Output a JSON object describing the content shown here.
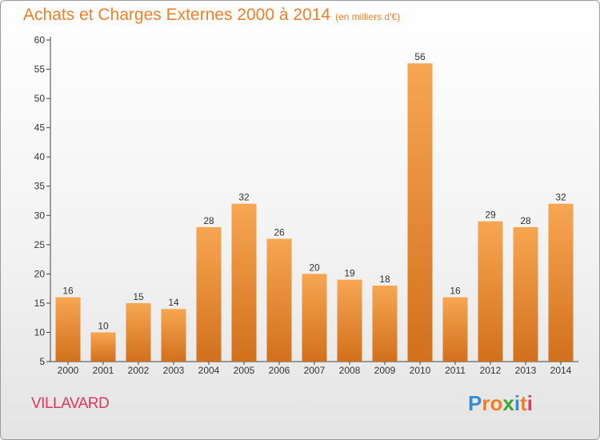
{
  "title": "Achats et Charges Externes 2000 à 2014",
  "subtitle": "(en milliers d'€)",
  "location": "VILLAVARD",
  "brand": {
    "name": "Proxiti",
    "letters": [
      {
        "ch": "P",
        "color": "#2f8fd8"
      },
      {
        "ch": "r",
        "color": "#f07f28"
      },
      {
        "ch": "o",
        "color": "#f07f28"
      },
      {
        "ch": "x",
        "color": "#3aa535"
      },
      {
        "ch": "i",
        "color": "#2f8fd8"
      },
      {
        "ch": "t",
        "color": "#f07f28"
      },
      {
        "ch": "i",
        "color": "#e3355f"
      }
    ]
  },
  "colors": {
    "bar_top": "#f7a652",
    "bar_bottom": "#d2701c",
    "title": "#f07f28",
    "location": "#e3355f"
  },
  "chart_data": {
    "type": "bar",
    "categories": [
      "2000",
      "2001",
      "2002",
      "2003",
      "2004",
      "2005",
      "2006",
      "2007",
      "2008",
      "2009",
      "2010",
      "2011",
      "2012",
      "2013",
      "2014"
    ],
    "values": [
      16,
      10,
      15,
      14,
      28,
      32,
      26,
      20,
      19,
      18,
      56,
      16,
      29,
      28,
      32
    ],
    "ylim": [
      5,
      60
    ],
    "yticks": [
      5,
      10,
      15,
      20,
      25,
      30,
      35,
      40,
      45,
      50,
      55,
      60
    ],
    "grid": false,
    "legend": "none"
  }
}
